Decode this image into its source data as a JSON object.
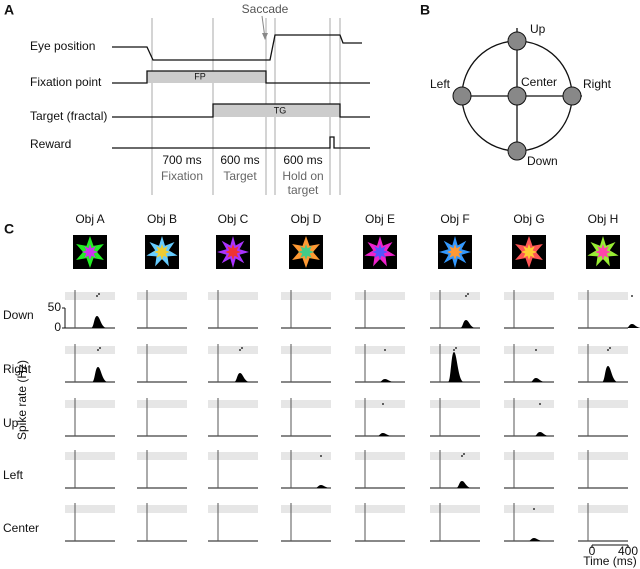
{
  "panel_a": {
    "label": "A",
    "saccade": "Saccade",
    "rows": [
      "Eye position",
      "Fixation point",
      "Target (fractal)",
      "Reward"
    ],
    "fp": "FP",
    "tg": "TG",
    "epochs": [
      {
        "duration": "700 ms",
        "name": [
          "Fixation"
        ]
      },
      {
        "duration": "600 ms",
        "name": [
          "Target"
        ]
      },
      {
        "duration": "600 ms",
        "name": [
          "Hold on",
          "target"
        ]
      }
    ]
  },
  "panel_b": {
    "label": "B",
    "positions": [
      "Up",
      "Left",
      "Center",
      "Right",
      "Down"
    ]
  },
  "panel_c": {
    "label": "C",
    "objects": [
      "Obj A",
      "Obj B",
      "Obj C",
      "Obj D",
      "Obj E",
      "Obj F",
      "Obj G",
      "Obj H"
    ],
    "rows": [
      "Down",
      "Right",
      "Up",
      "Left",
      "Center"
    ],
    "y_label": "Spike rate (Hz)",
    "rate_ticks": [
      50,
      0
    ],
    "time_ticks": [
      0,
      400
    ],
    "x_label": "Time (ms)"
  }
}
